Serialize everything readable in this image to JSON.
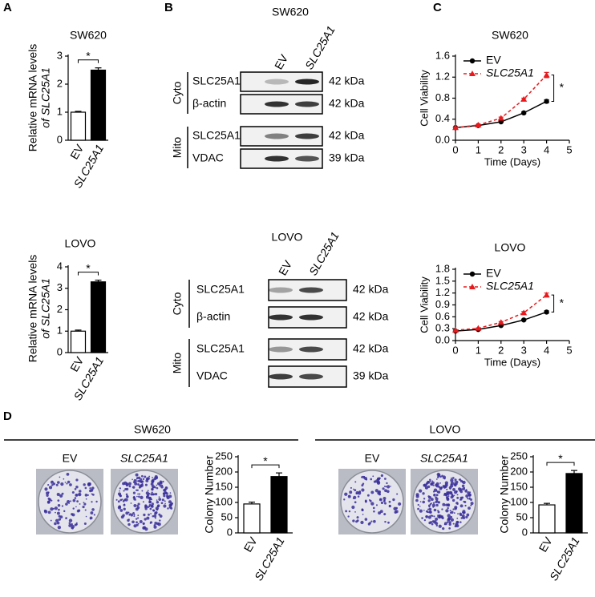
{
  "panel_labels": [
    "A",
    "B",
    "C",
    "D"
  ],
  "chart_data": [
    {
      "type": "bar",
      "title": "SW620",
      "ylabel": [
        "Relative mRNA levels",
        "of SLC25A1"
      ],
      "categories": [
        "EV",
        "SLC25A1"
      ],
      "values": [
        1.0,
        2.5
      ],
      "errors": [
        0.03,
        0.08
      ],
      "colors": [
        "#ffffff",
        "#000000"
      ],
      "ylim": [
        0,
        3
      ],
      "yticks": [
        0,
        1,
        2,
        3
      ],
      "annotation": "*"
    },
    {
      "type": "bar",
      "title": "LOVO",
      "ylabel": [
        "Relative mRNA levels",
        "of SLC25A1"
      ],
      "categories": [
        "EV",
        "SLC25A1"
      ],
      "values": [
        1.0,
        3.3
      ],
      "errors": [
        0.05,
        0.08
      ],
      "colors": [
        "#ffffff",
        "#000000"
      ],
      "ylim": [
        0,
        4
      ],
      "yticks": [
        0,
        1,
        2,
        3,
        4
      ],
      "annotation": "*"
    },
    {
      "type": "line",
      "title": "SW620",
      "xlabel": "Time (Days)",
      "ylabel": "Cell Viability",
      "x": [
        0,
        1,
        2,
        3,
        4
      ],
      "series": [
        {
          "name": "EV",
          "color": "#000000",
          "linestyle": "solid",
          "marker": "circle",
          "values": [
            0.24,
            0.28,
            0.35,
            0.52,
            0.74
          ],
          "errors": [
            0.01,
            0.01,
            0.01,
            0.02,
            0.03
          ]
        },
        {
          "name": "SLC25A1",
          "color": "#e8191c",
          "linestyle": "dashed",
          "marker": "triangle",
          "values": [
            0.24,
            0.29,
            0.42,
            0.78,
            1.24
          ],
          "errors": [
            0.01,
            0.01,
            0.02,
            0.02,
            0.05
          ]
        }
      ],
      "xlim": [
        0,
        5
      ],
      "xticks": [
        0,
        1,
        2,
        3,
        4,
        5
      ],
      "ylim": [
        0,
        1.6
      ],
      "yticks": [
        {
          "value": 0,
          "label": "0.0"
        },
        0.4,
        0.8,
        1.2,
        1.6
      ],
      "legend": "upper left",
      "annotation": "*"
    },
    {
      "type": "line",
      "title": "LOVO",
      "xlabel": "Time (Days)",
      "ylabel": "Cell Viability",
      "x": [
        0,
        1,
        2,
        3,
        4
      ],
      "series": [
        {
          "name": "EV",
          "color": "#000000",
          "linestyle": "solid",
          "marker": "circle",
          "values": [
            0.24,
            0.28,
            0.38,
            0.52,
            0.72
          ],
          "errors": [
            0.01,
            0.01,
            0.01,
            0.02,
            0.03
          ]
        },
        {
          "name": "SLC25A1",
          "color": "#e8191c",
          "linestyle": "dashed",
          "marker": "triangle",
          "values": [
            0.26,
            0.31,
            0.46,
            0.7,
            1.15
          ],
          "errors": [
            0.01,
            0.01,
            0.02,
            0.03,
            0.05
          ]
        }
      ],
      "xlim": [
        0,
        5
      ],
      "xticks": [
        0,
        1,
        2,
        3,
        4,
        5
      ],
      "ylim": [
        0,
        1.8
      ],
      "yticks": [
        {
          "value": 0,
          "label": "0.0"
        },
        0.3,
        0.6,
        0.9,
        1.2,
        1.5,
        1.8
      ],
      "legend": "upper left",
      "annotation": "*"
    },
    {
      "type": "bar",
      "ylabel": [
        "Colony Number"
      ],
      "categories": [
        "EV",
        "SLC25A1"
      ],
      "values": [
        95,
        185
      ],
      "errors": [
        6,
        12
      ],
      "colors": [
        "#ffffff",
        "#000000"
      ],
      "ylim": [
        0,
        250
      ],
      "yticks": [
        0,
        50,
        100,
        150,
        200,
        250
      ],
      "annotation": "*"
    },
    {
      "type": "bar",
      "ylabel": [
        "Colony Number"
      ],
      "categories": [
        "EV",
        "SLC25A1"
      ],
      "values": [
        92,
        195
      ],
      "errors": [
        5,
        10
      ],
      "colors": [
        "#ffffff",
        "#000000"
      ],
      "ylim": [
        0,
        250
      ],
      "yticks": [
        0,
        50,
        100,
        150,
        200,
        250
      ],
      "annotation": "*"
    }
  ],
  "blots": [
    {
      "title": "SW620",
      "lanes": [
        "EV",
        "SLC25A1"
      ],
      "groups": [
        {
          "name": "Cyto",
          "rows": [
            {
              "protein": "SLC25A1",
              "size": "42 kDa"
            },
            {
              "protein": "β-actin",
              "size": "42 kDa"
            }
          ]
        },
        {
          "name": "Mito",
          "rows": [
            {
              "protein": "SLC25A1",
              "size": "42 kDa"
            },
            {
              "protein": "VDAC",
              "size": "39 kDa"
            }
          ]
        }
      ]
    },
    {
      "title": "LOVO",
      "lanes": [
        "EV",
        "SLC25A1"
      ],
      "groups": [
        {
          "name": "Cyto",
          "rows": [
            {
              "protein": "SLC25A1",
              "size": "42 kDa"
            },
            {
              "protein": "β-actin",
              "size": "42 kDa"
            }
          ]
        },
        {
          "name": "Mito",
          "rows": [
            {
              "protein": "SLC25A1",
              "size": "42 kDa"
            },
            {
              "protein": "VDAC",
              "size": "39 kDa"
            }
          ]
        }
      ]
    }
  ],
  "colony": [
    {
      "title": "SW620",
      "lanes": [
        "EV",
        "SLC25A1"
      ]
    },
    {
      "title": "LOVO",
      "lanes": [
        "EV",
        "SLC25A1"
      ]
    }
  ]
}
